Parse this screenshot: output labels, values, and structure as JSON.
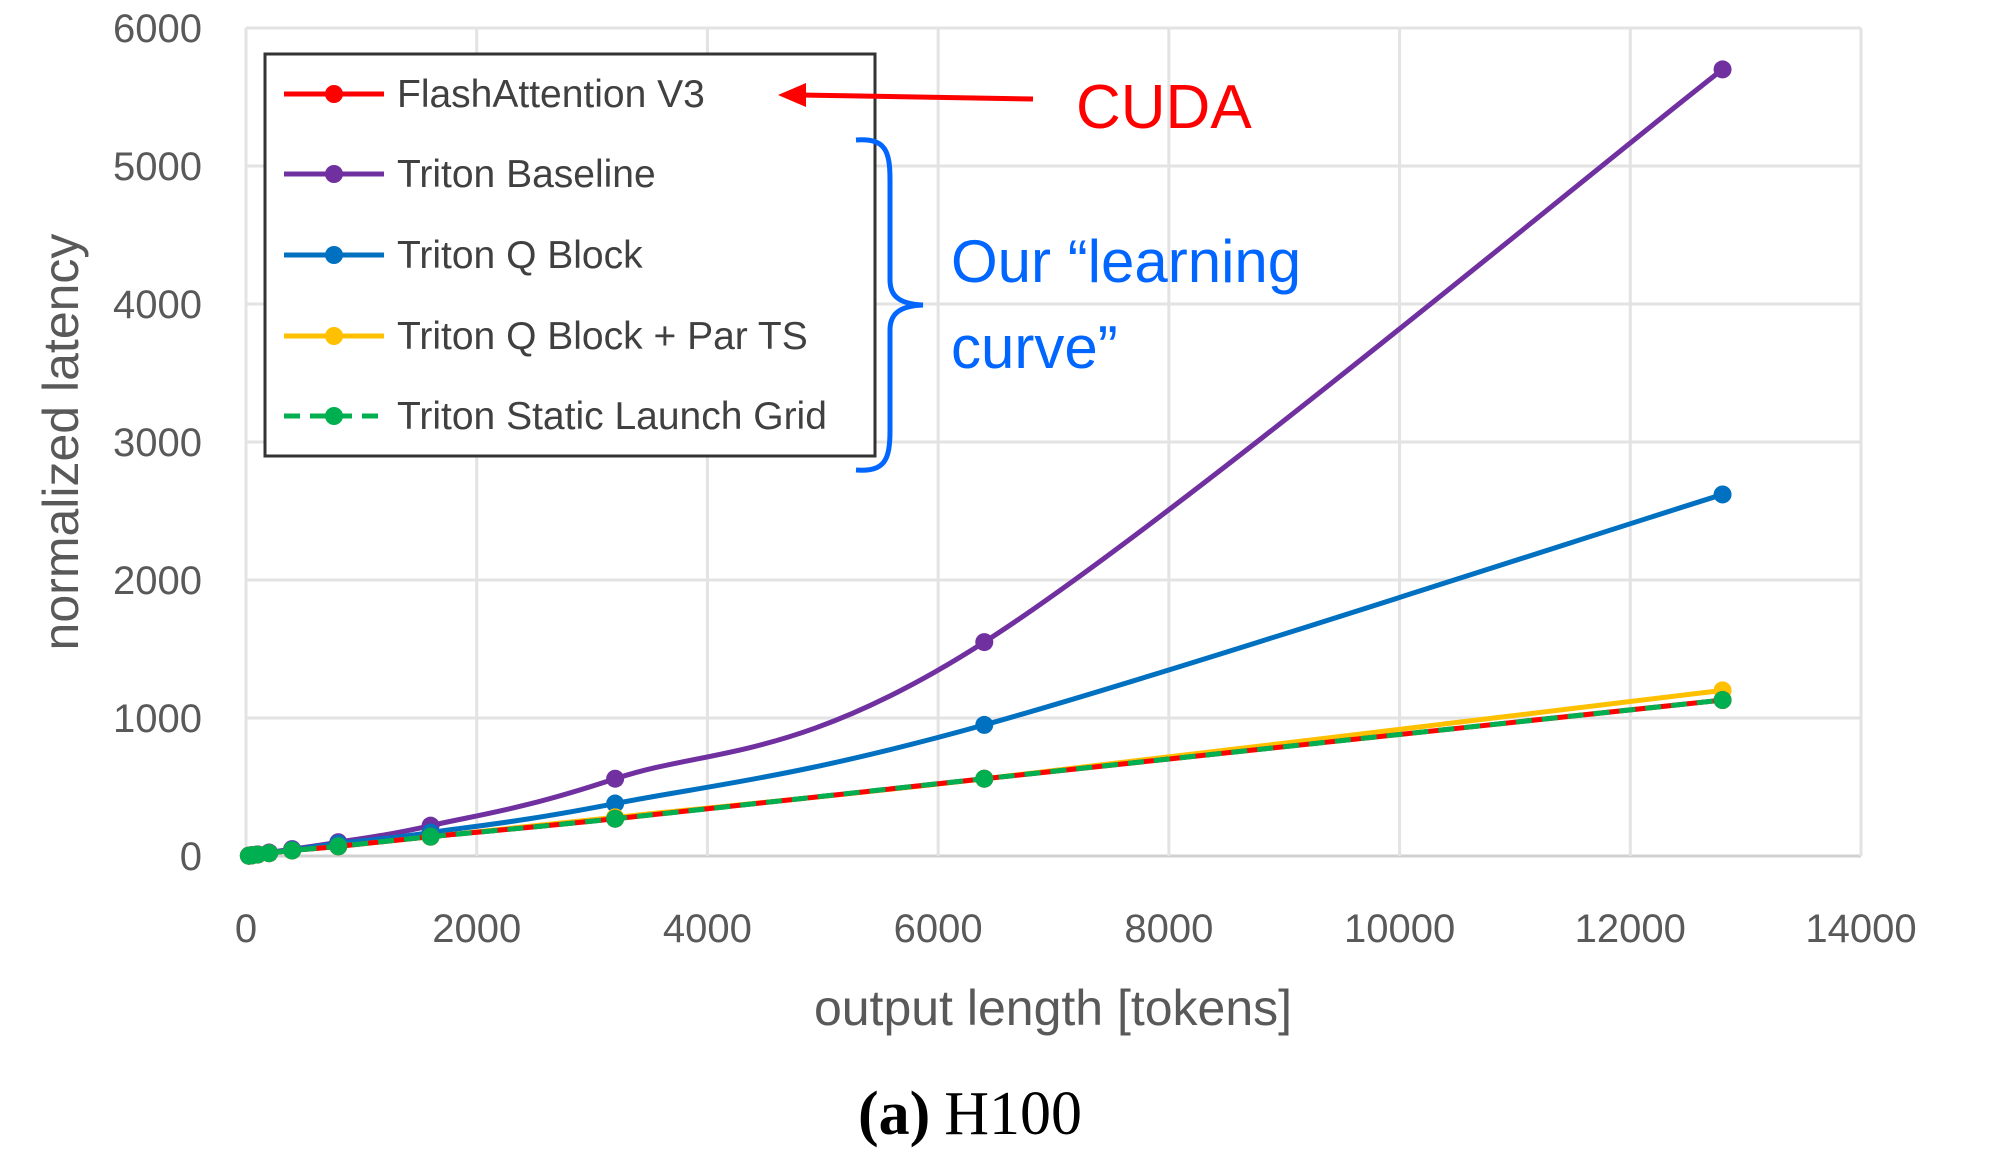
{
  "chart_data": {
    "type": "line",
    "title": "",
    "caption_label": "(a)",
    "caption_text": "H100",
    "xlabel": "output length [tokens]",
    "ylabel": "normalized latency",
    "xlim": [
      0,
      14000
    ],
    "ylim": [
      0,
      6000
    ],
    "xticks": [
      "0",
      "2000",
      "4000",
      "6000",
      "8000",
      "10000",
      "12000",
      "14000"
    ],
    "yticks": [
      "0",
      "1000",
      "2000",
      "3000",
      "4000",
      "5000",
      "6000"
    ],
    "grid": true,
    "legend_position": "top-left",
    "x": [
      25,
      50,
      100,
      200,
      400,
      800,
      1600,
      3200,
      6400,
      12800
    ],
    "series": [
      {
        "name": "FlashAttention V3",
        "color": "#ff0000",
        "dash": false,
        "values": [
          2,
          5,
          10,
          20,
          40,
          70,
          140,
          270,
          560,
          1130
        ]
      },
      {
        "name": "Triton Baseline",
        "color": "#7030a0",
        "dash": false,
        "values": [
          3,
          6,
          12,
          25,
          50,
          100,
          220,
          560,
          1550,
          5700
        ]
      },
      {
        "name": "Triton Q Block",
        "color": "#0070c0",
        "dash": false,
        "values": [
          2,
          5,
          11,
          22,
          45,
          90,
          170,
          380,
          950,
          2620
        ]
      },
      {
        "name": "Triton Q Block + Par TS",
        "color": "#ffc000",
        "dash": false,
        "values": [
          2,
          5,
          10,
          20,
          40,
          70,
          140,
          280,
          560,
          1200
        ]
      },
      {
        "name": "Triton Static Launch Grid",
        "color": "#00b050",
        "dash": true,
        "values": [
          2,
          5,
          10,
          20,
          40,
          70,
          140,
          270,
          560,
          1130
        ]
      }
    ],
    "annotations": {
      "cuda": {
        "text": "CUDA",
        "color": "#ff0000"
      },
      "learning_line1": "Our “learning",
      "learning_line2": "curve”",
      "learning_color": "#0066ff"
    }
  }
}
